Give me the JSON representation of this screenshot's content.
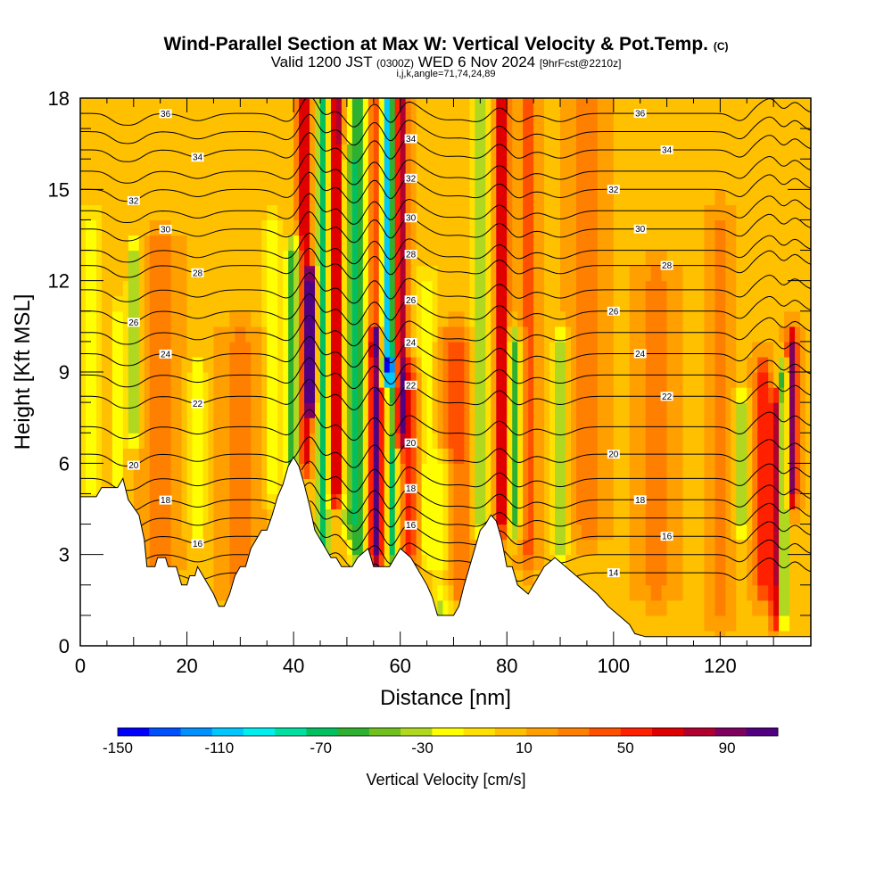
{
  "title": "Wind-Parallel Section at Max W: Vertical Velocity & Pot.Temp.",
  "title_suffix": "(C)",
  "subtitle_pre": "Valid 1200 JST ",
  "subtitle_utc": "(0300Z)",
  "subtitle_date": " WED 6 Nov 2024 ",
  "subtitle_fcst": "[9hrFcst@2210z]",
  "indices": "i,j,k,angle=71,74,24,89",
  "colorbar": {
    "label": "Vertical Velocity [cm/s]",
    "ticks": [
      "-150",
      "-110",
      "-70",
      "-30",
      "10",
      "50",
      "90"
    ],
    "tick_values": [
      -150,
      -110,
      -70,
      -30,
      10,
      50,
      90
    ],
    "colors": [
      "#0000ff",
      "#0050ff",
      "#0090ff",
      "#00c8ff",
      "#00f0f0",
      "#00e0a0",
      "#00c060",
      "#30b030",
      "#70c020",
      "#b0d820",
      "#ffff00",
      "#ffe000",
      "#ffc000",
      "#ffa000",
      "#ff8000",
      "#ff5000",
      "#ff2000",
      "#e00000",
      "#b00030",
      "#800060",
      "#500080"
    ]
  },
  "chart_data": {
    "type": "heatmap",
    "title": "Wind-Parallel Section at Max W: Vertical Velocity & Pot.Temp.",
    "xlabel": "Distance [nm]",
    "ylabel": "Height [Kft MSL]",
    "xlim": [
      0,
      137
    ],
    "ylim": [
      0,
      18
    ],
    "x_ticks": [
      0,
      20,
      40,
      60,
      80,
      100,
      120
    ],
    "y_ticks": [
      0,
      3,
      6,
      9,
      12,
      15,
      18
    ],
    "field": "Vertical Velocity [cm/s]",
    "value_range": [
      -150,
      110
    ],
    "background_value": 10,
    "features": [
      {
        "x": 2,
        "width": 2.0,
        "value": -25,
        "ybot": 5,
        "ytop": 14
      },
      {
        "x": 7,
        "width": 1.0,
        "value": -30,
        "ybot": 5,
        "ytop": 11
      },
      {
        "x": 10,
        "width": 1.2,
        "value": -45,
        "ybot": 7,
        "ytop": 13
      },
      {
        "x": 15,
        "width": 3.0,
        "value": 35,
        "ybot": 3,
        "ytop": 13
      },
      {
        "x": 22,
        "width": 1.5,
        "value": -30,
        "ybot": 4,
        "ytop": 9
      },
      {
        "x": 30,
        "width": 3.0,
        "value": 30,
        "ybot": 2,
        "ytop": 10
      },
      {
        "x": 36,
        "width": 1.5,
        "value": -25,
        "ybot": 5,
        "ytop": 14
      },
      {
        "x": 40,
        "width": 1.5,
        "value": -60,
        "ybot": 5,
        "ytop": 13
      },
      {
        "x": 42,
        "width": 1.2,
        "value": 80,
        "ybot": 6,
        "ytop": 18
      },
      {
        "x": 43.5,
        "width": 1.0,
        "value": 110,
        "ybot": 8,
        "ytop": 12
      },
      {
        "x": 45.5,
        "width": 1.2,
        "value": -70,
        "ybot": 3,
        "ytop": 18
      },
      {
        "x": 48,
        "width": 1.2,
        "value": 90,
        "ybot": 5,
        "ytop": 18
      },
      {
        "x": 50,
        "width": 1.2,
        "value": -30,
        "ybot": 4,
        "ytop": 16
      },
      {
        "x": 52,
        "width": 1.5,
        "value": -65,
        "ybot": 3,
        "ytop": 18
      },
      {
        "x": 55.5,
        "width": 1.2,
        "value": 110,
        "ybot": 3,
        "ytop": 10
      },
      {
        "x": 56,
        "width": 1.5,
        "value": 70,
        "ybot": 10,
        "ytop": 18
      },
      {
        "x": 57.5,
        "width": 1.5,
        "value": -130,
        "ybot": 9,
        "ytop": 18
      },
      {
        "x": 58.5,
        "width": 1.0,
        "value": -70,
        "ybot": 3,
        "ytop": 9
      },
      {
        "x": 60,
        "width": 1.2,
        "value": 90,
        "ybot": 7,
        "ytop": 18
      },
      {
        "x": 62,
        "width": 2.0,
        "value": 55,
        "ybot": 3,
        "ytop": 9
      },
      {
        "x": 65,
        "width": 2.0,
        "value": -25,
        "ybot": 3,
        "ytop": 12
      },
      {
        "x": 68,
        "width": 2.0,
        "value": -30,
        "ybot": 1,
        "ytop": 6
      },
      {
        "x": 70,
        "width": 3.0,
        "value": 45,
        "ybot": 2,
        "ytop": 10
      },
      {
        "x": 75,
        "width": 1.5,
        "value": -35,
        "ybot": 4,
        "ytop": 18
      },
      {
        "x": 79,
        "width": 1.2,
        "value": 75,
        "ybot": 4,
        "ytop": 18
      },
      {
        "x": 81.5,
        "width": 1.2,
        "value": -55,
        "ybot": 4,
        "ytop": 10
      },
      {
        "x": 84,
        "width": 1.5,
        "value": 40,
        "ybot": 3,
        "ytop": 18
      },
      {
        "x": 90,
        "width": 1.5,
        "value": -35,
        "ybot": 3,
        "ytop": 10
      },
      {
        "x": 95,
        "width": 3.0,
        "value": 35,
        "ybot": 4,
        "ytop": 18
      },
      {
        "x": 108,
        "width": 3.0,
        "value": 30,
        "ybot": 2,
        "ytop": 12
      },
      {
        "x": 120,
        "width": 2.0,
        "value": 30,
        "ybot": 1,
        "ytop": 14
      },
      {
        "x": 124,
        "width": 1.0,
        "value": -40,
        "ybot": 4,
        "ytop": 8
      },
      {
        "x": 128,
        "width": 1.5,
        "value": 60,
        "ybot": 2,
        "ytop": 9
      },
      {
        "x": 130.5,
        "width": 1.0,
        "value": 80,
        "ybot": 1,
        "ytop": 8
      },
      {
        "x": 131.8,
        "width": 0.9,
        "value": -70,
        "ybot": 1,
        "ytop": 9
      },
      {
        "x": 133.5,
        "width": 1.0,
        "value": 90,
        "ybot": 5,
        "ytop": 10
      }
    ],
    "terrain": [
      [
        0,
        4.9
      ],
      [
        3,
        4.9
      ],
      [
        4,
        5.2
      ],
      [
        7,
        5.2
      ],
      [
        8,
        5.5
      ],
      [
        9,
        4.8
      ],
      [
        11,
        4.3
      ],
      [
        12,
        3.5
      ],
      [
        12.5,
        2.6
      ],
      [
        14,
        2.6
      ],
      [
        14.5,
        2.9
      ],
      [
        16,
        2.9
      ],
      [
        16.5,
        2.6
      ],
      [
        18,
        2.6
      ],
      [
        18.5,
        2.3
      ],
      [
        19,
        2.0
      ],
      [
        20,
        2.0
      ],
      [
        20.5,
        2.3
      ],
      [
        21.5,
        2.3
      ],
      [
        22,
        2.6
      ],
      [
        24,
        2.0
      ],
      [
        25,
        1.7
      ],
      [
        26,
        1.3
      ],
      [
        27,
        1.3
      ],
      [
        28,
        1.7
      ],
      [
        29,
        2.3
      ],
      [
        30,
        2.6
      ],
      [
        31,
        2.6
      ],
      [
        32,
        3.2
      ],
      [
        33,
        3.5
      ],
      [
        34,
        3.8
      ],
      [
        35,
        3.8
      ],
      [
        36,
        4.3
      ],
      [
        37,
        4.9
      ],
      [
        38,
        5.3
      ],
      [
        39,
        5.9
      ],
      [
        40,
        6.2
      ],
      [
        41,
        5.9
      ],
      [
        42,
        5.3
      ],
      [
        43,
        4.6
      ],
      [
        44,
        3.8
      ],
      [
        45,
        3.5
      ],
      [
        46,
        3.2
      ],
      [
        47,
        2.9
      ],
      [
        48,
        2.9
      ],
      [
        49,
        2.6
      ],
      [
        51,
        2.6
      ],
      [
        52,
        2.9
      ],
      [
        54,
        3.2
      ],
      [
        55,
        2.6
      ],
      [
        58,
        2.6
      ],
      [
        60,
        3.2
      ],
      [
        62,
        2.9
      ],
      [
        63,
        2.6
      ],
      [
        65,
        2.0
      ],
      [
        66,
        1.6
      ],
      [
        67,
        1.0
      ],
      [
        70,
        1.0
      ],
      [
        71,
        1.3
      ],
      [
        72,
        2.0
      ],
      [
        73,
        2.6
      ],
      [
        74,
        3.2
      ],
      [
        75,
        3.8
      ],
      [
        76,
        4.0
      ],
      [
        77,
        4.3
      ],
      [
        78,
        4.1
      ],
      [
        79,
        3.5
      ],
      [
        80,
        2.6
      ],
      [
        81,
        2.6
      ],
      [
        82,
        2.0
      ],
      [
        84,
        1.7
      ],
      [
        85,
        2.0
      ],
      [
        86,
        2.3
      ],
      [
        87,
        2.6
      ],
      [
        89,
        2.9
      ],
      [
        91,
        2.6
      ],
      [
        93,
        2.3
      ],
      [
        95,
        2.0
      ],
      [
        97,
        1.7
      ],
      [
        99,
        1.3
      ],
      [
        101,
        1.0
      ],
      [
        103,
        0.7
      ],
      [
        104,
        0.4
      ],
      [
        106,
        0.3
      ],
      [
        137,
        0.3
      ]
    ],
    "theta_contours": [
      {
        "value": 14,
        "label": "14",
        "base": 2.4
      },
      {
        "value": 15,
        "label": "",
        "base": 3.0
      },
      {
        "value": 16,
        "label": "16",
        "base": 3.6
      },
      {
        "value": 17,
        "label": "",
        "base": 4.2
      },
      {
        "value": 18,
        "label": "18",
        "base": 4.8
      },
      {
        "value": 19,
        "label": "",
        "base": 5.5
      },
      {
        "value": 20,
        "label": "20",
        "base": 6.3
      },
      {
        "value": 21,
        "label": "",
        "base": 7.2
      },
      {
        "value": 22,
        "label": "22",
        "base": 8.2
      },
      {
        "value": 23,
        "label": "",
        "base": 8.9
      },
      {
        "value": 24,
        "label": "24",
        "base": 9.6
      },
      {
        "value": 25,
        "label": "",
        "base": 10.3
      },
      {
        "value": 26,
        "label": "26",
        "base": 11.0
      },
      {
        "value": 27,
        "label": "",
        "base": 11.7
      },
      {
        "value": 28,
        "label": "28",
        "base": 12.5
      },
      {
        "value": 29,
        "label": "",
        "base": 13.0
      },
      {
        "value": 30,
        "label": "30",
        "base": 13.7
      },
      {
        "value": 31,
        "label": "",
        "base": 14.3
      },
      {
        "value": 32,
        "label": "32",
        "base": 15.0
      },
      {
        "value": 33,
        "label": "",
        "base": 15.6
      },
      {
        "value": 34,
        "label": "34",
        "base": 16.3
      },
      {
        "value": 35,
        "label": "",
        "base": 16.9
      },
      {
        "value": 36,
        "label": "36",
        "base": 17.5
      }
    ]
  }
}
